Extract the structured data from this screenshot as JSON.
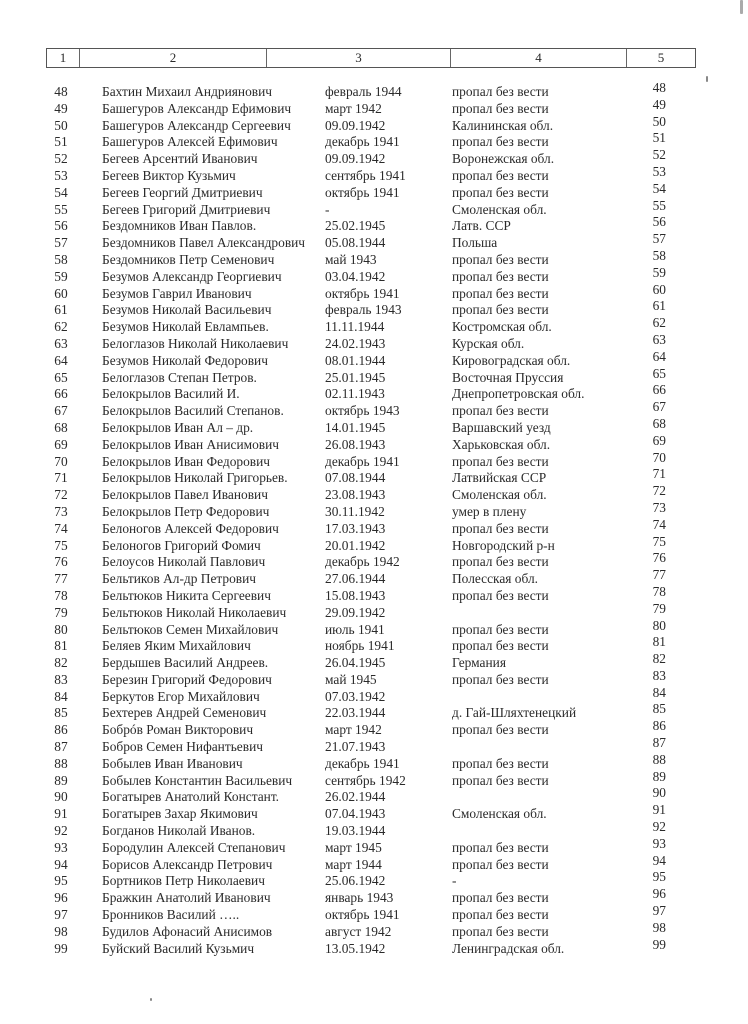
{
  "header": {
    "columns": [
      "1",
      "2",
      "3",
      "4",
      "5"
    ]
  },
  "rows": [
    [
      "48",
      "Бахтин Михаил Андриянович",
      "февраль 1944",
      "пропал без вести",
      "48"
    ],
    [
      "49",
      "Башегуров Александр Ефимович",
      "март 1942",
      "пропал без вести",
      "49"
    ],
    [
      "50",
      "Башегуров Александр Сергеевич",
      "09.09.1942",
      "Калининская обл.",
      "50"
    ],
    [
      "51",
      "Башегуров Алексей Ефимович",
      "декабрь 1941",
      "пропал без вести",
      "51"
    ],
    [
      "52",
      "Бегеев Арсентий Иванович",
      "09.09.1942",
      "Воронежская обл.",
      "52"
    ],
    [
      "53",
      "Бегеев Виктор Кузьмич",
      "сентябрь 1941",
      "пропал без вести",
      "53"
    ],
    [
      "54",
      "Бегеев Георгий Дмитриевич",
      "октябрь 1941",
      "пропал без вести",
      "54"
    ],
    [
      "55",
      "Бегеев Григорий Дмитриевич",
      "-",
      "Смоленская обл.",
      "55"
    ],
    [
      "56",
      "Бездомников Иван Павлов.",
      "25.02.1945",
      "Латв. ССР",
      "56"
    ],
    [
      "57",
      "Бездомников Павел Александрович",
      "05.08.1944",
      "Польша",
      "57"
    ],
    [
      "58",
      "Бездомников Петр Семенович",
      "май 1943",
      "пропал без вести",
      "58"
    ],
    [
      "59",
      "Безумов Александр Георгиевич",
      "03.04.1942",
      "пропал без вести",
      "59"
    ],
    [
      "60",
      "Безумов Гаврил Иванович",
      "октябрь 1941",
      "пропал без вести",
      "60"
    ],
    [
      "61",
      "Безумов Николай Васильевич",
      "февраль 1943",
      "пропал без вести",
      "61"
    ],
    [
      "62",
      "Безумов Николай Евлампьев.",
      "11.11.1944",
      "Костромская обл.",
      "62"
    ],
    [
      "63",
      "Белоглазов Николай Николаевич",
      "24.02.1943",
      "Курская обл.",
      "63"
    ],
    [
      "64",
      "Безумов Николай Федорович",
      "08.01.1944",
      "Кировоградская обл.",
      "64"
    ],
    [
      "65",
      "Белоглазов Степан Петров.",
      "25.01.1945",
      "Восточная Пруссия",
      "65"
    ],
    [
      "66",
      "Белокрылов Василий И.",
      "02.11.1943",
      "Днепропетровская обл.",
      "66"
    ],
    [
      "67",
      "Белокрылов Василий Степанов.",
      "октябрь 1943",
      "пропал без вести",
      "67"
    ],
    [
      "68",
      "Белокрылов Иван Ал – др.",
      "14.01.1945",
      "Варшавский уезд",
      "68"
    ],
    [
      "69",
      "Белокрылов Иван Анисимович",
      "26.08.1943",
      "Харьковская обл.",
      "69"
    ],
    [
      "70",
      "Белокрылов Иван Федорович",
      "декабрь 1941",
      "пропал без вести",
      "70"
    ],
    [
      "71",
      "Белокрылов Николай Григорьев.",
      "07.08.1944",
      "Латвийская ССР",
      "71"
    ],
    [
      "72",
      "Белокрылов Павел Иванович",
      "23.08.1943",
      "Смоленская обл.",
      "72"
    ],
    [
      "73",
      "Белокрылов Петр Федорович",
      "30.11.1942",
      "умер в плену",
      "73"
    ],
    [
      "74",
      "Белоногов Алексей Федорович",
      "17.03.1943",
      "пропал без вести",
      "74"
    ],
    [
      "75",
      "Белоногов Григорий Фомич",
      "20.01.1942",
      "Новгородский р-н",
      "75"
    ],
    [
      "76",
      "Белоусов Николай Павлович",
      "декабрь 1942",
      "пропал без вести",
      "76"
    ],
    [
      "77",
      "Бельтиков Ал-др Петрович",
      "27.06.1944",
      "Полесская обл.",
      "77"
    ],
    [
      "78",
      "Бельтюков Никита Сергеевич",
      "15.08.1943",
      "пропал без вести",
      "78"
    ],
    [
      "79",
      "Бельтюков Николай Николаевич",
      "29.09.1942",
      "",
      "79"
    ],
    [
      "80",
      "Бельтюков Семен Михайлович",
      "июль 1941",
      "пропал без вести",
      "80"
    ],
    [
      "81",
      "Беляев Яким Михайлович",
      "ноябрь 1941",
      "пропал без вести",
      "81"
    ],
    [
      "82",
      "Бердышев Василий Андреев.",
      "26.04.1945",
      "Германия",
      "82"
    ],
    [
      "83",
      "Березин Григорий Федорович",
      "май 1945",
      "пропал без вести",
      "83"
    ],
    [
      "84",
      "Беркутов Егор Михайлович",
      "07.03.1942",
      "",
      "84"
    ],
    [
      "85",
      "Бехтерев Андрей Семенович",
      "22.03.1944",
      "д. Гай-Шляхтенецкий",
      "85"
    ],
    [
      "86",
      "Бобрóв Роман Викторович",
      "март 1942",
      "пропал без вести",
      "86"
    ],
    [
      "87",
      "Бобров Семен Нифантьевич",
      "21.07.1943",
      "",
      "87"
    ],
    [
      "88",
      "Бобылев Иван Иванович",
      "декабрь 1941",
      "пропал без вести",
      "88"
    ],
    [
      "89",
      "Бобылев Константин Васильевич",
      "сентябрь 1942",
      "пропал без вести",
      "89"
    ],
    [
      "90",
      "Богатырев Анатолий Констант.",
      "26.02.1944",
      "",
      "90"
    ],
    [
      "91",
      "Богатырев Захар Якимович",
      "07.04.1943",
      "Смоленская обл.",
      "91"
    ],
    [
      "92",
      "Богданов Николай Иванов.",
      "19.03.1944",
      "",
      "92"
    ],
    [
      "93",
      "Бородулин Алексей Степанович",
      "март 1945",
      "пропал без вести",
      "93"
    ],
    [
      "94",
      "Борисов Александр Петрович",
      "март 1944",
      "пропал без вести",
      "94"
    ],
    [
      "95",
      "Бортников Петр Николаевич",
      "25.06.1942",
      "-",
      "95"
    ],
    [
      "96",
      "Бражкин Анатолий Иванович",
      "январь 1943",
      "пропал без вести",
      "96"
    ],
    [
      "97",
      "Бронников Василий …..",
      "октябрь 1941",
      "пропал без вести",
      "97"
    ],
    [
      "98",
      "Будилов Афонасий Анисимов",
      "август 1942",
      "пропал без вести",
      "98"
    ],
    [
      "99",
      "Буйский Василий Кузьмич",
      "13.05.1942",
      "Ленинградская обл.",
      "99"
    ]
  ]
}
